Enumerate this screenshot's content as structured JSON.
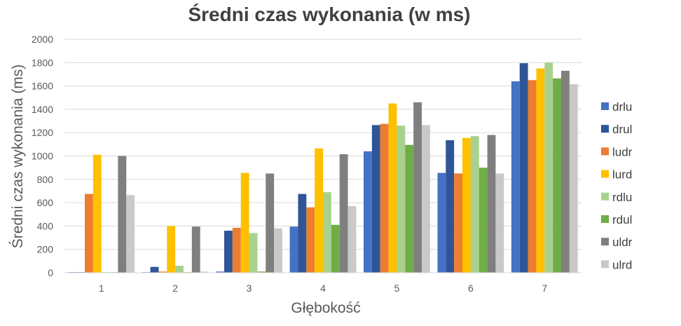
{
  "chart_data": {
    "type": "bar",
    "title": "Średni czas wykonania (w ms)",
    "xlabel": "Głębokość",
    "ylabel": "Średni czas wykonania (ms)",
    "ylim": [
      0,
      2000
    ],
    "yticks": [
      0,
      200,
      400,
      600,
      800,
      1000,
      1200,
      1400,
      1600,
      1800,
      2000
    ],
    "grid": true,
    "legend_position": "right",
    "categories": [
      "1",
      "2",
      "3",
      "4",
      "5",
      "6",
      "7"
    ],
    "series": [
      {
        "name": "drlu",
        "color": "#4472C4",
        "values": [
          5,
          5,
          10,
          395,
          1040,
          855,
          1640
        ]
      },
      {
        "name": "drul",
        "color": "#2F5597",
        "values": [
          5,
          50,
          360,
          675,
          1265,
          1135,
          1795
        ]
      },
      {
        "name": "ludr",
        "color": "#ED7D31",
        "values": [
          675,
          10,
          385,
          560,
          1275,
          850,
          1650
        ]
      },
      {
        "name": "lurd",
        "color": "#FFC000",
        "values": [
          1010,
          400,
          855,
          1065,
          1450,
          1155,
          1750
        ]
      },
      {
        "name": "rdlu",
        "color": "#A9D18E",
        "values": [
          5,
          60,
          340,
          690,
          1260,
          1170,
          1800
        ]
      },
      {
        "name": "rdul",
        "color": "#70AD47",
        "values": [
          5,
          5,
          10,
          410,
          1095,
          900,
          1665
        ]
      },
      {
        "name": "uldr",
        "color": "#7F7F7F",
        "values": [
          1000,
          395,
          850,
          1015,
          1460,
          1180,
          1730
        ]
      },
      {
        "name": "ulrd",
        "color": "#C9C9C9",
        "values": [
          665,
          10,
          380,
          570,
          1265,
          850,
          1615
        ]
      }
    ]
  }
}
